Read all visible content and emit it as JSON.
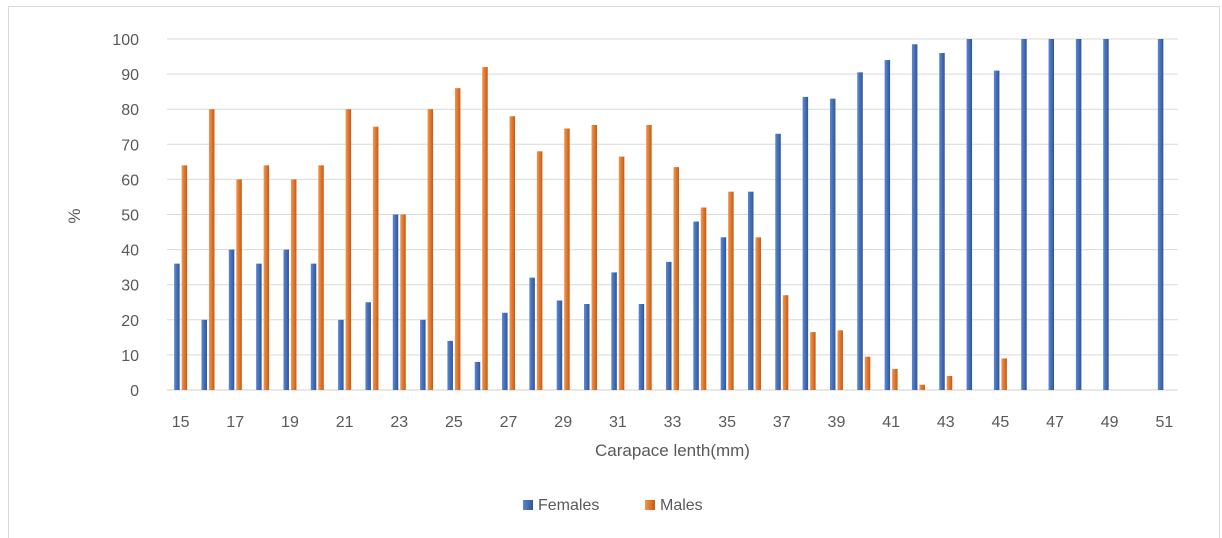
{
  "chart_data": {
    "type": "bar",
    "xlabel": "Carapace lenth(mm)",
    "ylabel": "%",
    "ylim": [
      0,
      100
    ],
    "yticks": [
      0,
      10,
      20,
      30,
      40,
      50,
      60,
      70,
      80,
      90,
      100
    ],
    "categories": [
      "15",
      "16",
      "17",
      "18",
      "19",
      "20",
      "21",
      "22",
      "23",
      "24",
      "25",
      "26",
      "27",
      "28",
      "29",
      "30",
      "31",
      "32",
      "33",
      "34",
      "35",
      "36",
      "37",
      "38",
      "39",
      "40",
      "41",
      "42",
      "43",
      "44",
      "45",
      "46",
      "47",
      "48",
      "49",
      "50",
      "51"
    ],
    "x_tick_labels": [
      "15",
      "",
      "17",
      "",
      "19",
      "",
      "21",
      "",
      "23",
      "",
      "25",
      "",
      "27",
      "",
      "29",
      "",
      "31",
      "",
      "33",
      "",
      "35",
      "",
      "37",
      "",
      "39",
      "",
      "41",
      "",
      "43",
      "",
      "45",
      "",
      "47",
      "",
      "49",
      "",
      "51"
    ],
    "grid": true,
    "legend_position": "bottom",
    "series": [
      {
        "name": "Females",
        "color": "#4472c4",
        "values": [
          36,
          20,
          40,
          36,
          40,
          36,
          20,
          25,
          50,
          20,
          14,
          8,
          22,
          32,
          25.5,
          24.5,
          33.5,
          24.5,
          36.5,
          48,
          43.5,
          56.5,
          73,
          83.5,
          83,
          90.5,
          94,
          98.5,
          96,
          100,
          91,
          100,
          100,
          100,
          100,
          0,
          100
        ]
      },
      {
        "name": "Males",
        "color": "#ed7d31",
        "values": [
          64,
          80,
          60,
          64,
          60,
          64,
          80,
          75,
          50,
          80,
          86,
          92,
          78,
          68,
          74.5,
          75.5,
          66.5,
          75.5,
          63.5,
          52,
          56.5,
          43.5,
          27,
          16.5,
          17,
          9.5,
          6,
          1.5,
          4,
          0,
          9,
          0,
          0,
          0,
          0,
          0,
          0
        ]
      }
    ]
  }
}
